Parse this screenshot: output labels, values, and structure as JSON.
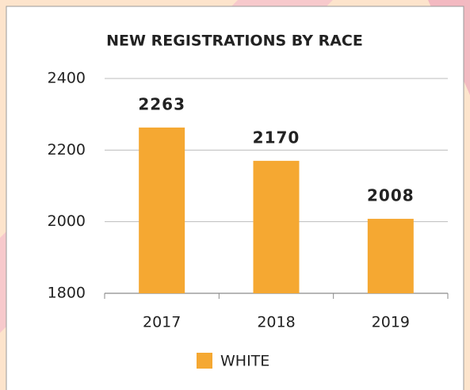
{
  "chart_data": {
    "type": "bar",
    "title": "NEW REGISTRATIONS BY RACE",
    "categories": [
      "2017",
      "2018",
      "2019"
    ],
    "series": [
      {
        "name": "WHITE",
        "color": "#f5a832",
        "values": [
          2263,
          2170,
          2008
        ]
      }
    ],
    "ylim": [
      1800,
      2400
    ],
    "yticks": [
      1800,
      2000,
      2200,
      2400
    ],
    "grid": true,
    "legend": "bottom"
  }
}
